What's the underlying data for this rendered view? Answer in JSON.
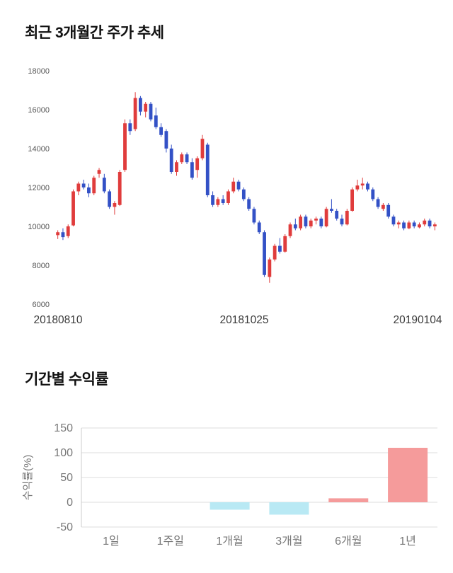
{
  "sections": {
    "price_trend": {
      "title": "최근 3개월간 주가 추세"
    },
    "returns": {
      "title": "기간별 수익률"
    }
  },
  "chart_data": [
    {
      "type": "candlestick",
      "title": "최근 3개월간 주가 추세",
      "ylim": [
        6000,
        18000
      ],
      "yticks": [
        18000,
        16000,
        14000,
        12000,
        10000,
        8000,
        6000
      ],
      "xtick_labels": [
        "20180810",
        "20181025",
        "20190104"
      ],
      "grid": false,
      "legend": "none",
      "colors": {
        "up": "#e03c3c",
        "down": "#3351c6"
      },
      "ohlc_format": [
        "open",
        "high",
        "low",
        "close"
      ],
      "ohlc": [
        [
          9550,
          9800,
          9350,
          9700
        ],
        [
          9700,
          9900,
          9300,
          9450
        ],
        [
          9500,
          10100,
          9400,
          10000
        ],
        [
          10050,
          11900,
          10000,
          11800
        ],
        [
          11800,
          12300,
          11600,
          12200
        ],
        [
          12200,
          12400,
          11900,
          12000
        ],
        [
          12000,
          12200,
          11500,
          11700
        ],
        [
          11700,
          12600,
          11600,
          12500
        ],
        [
          12700,
          13000,
          12500,
          12900
        ],
        [
          12500,
          12700,
          11700,
          11800
        ],
        [
          11800,
          11900,
          10900,
          11000
        ],
        [
          11000,
          11300,
          10600,
          11200
        ],
        [
          11100,
          12900,
          11050,
          12800
        ],
        [
          12900,
          15500,
          12800,
          15300
        ],
        [
          15300,
          15500,
          14700,
          14900
        ],
        [
          15000,
          16900,
          14900,
          16600
        ],
        [
          16600,
          16700,
          15700,
          15900
        ],
        [
          15900,
          16400,
          15600,
          16300
        ],
        [
          16300,
          16400,
          15400,
          15500
        ],
        [
          15700,
          16100,
          15000,
          15100
        ],
        [
          15100,
          15300,
          14600,
          14700
        ],
        [
          14900,
          15000,
          13800,
          14000
        ],
        [
          14000,
          14200,
          12700,
          12800
        ],
        [
          12800,
          13400,
          12600,
          13300
        ],
        [
          13300,
          13800,
          13200,
          13700
        ],
        [
          13700,
          13800,
          13200,
          13300
        ],
        [
          13300,
          13500,
          12400,
          12500
        ],
        [
          12900,
          13600,
          12500,
          13500
        ],
        [
          13500,
          14700,
          13400,
          14500
        ],
        [
          14200,
          14300,
          11500,
          11600
        ],
        [
          11600,
          11800,
          11000,
          11100
        ],
        [
          11100,
          11500,
          11000,
          11400
        ],
        [
          11400,
          11600,
          11100,
          11200
        ],
        [
          11200,
          11900,
          11100,
          11800
        ],
        [
          11800,
          12500,
          11700,
          12300
        ],
        [
          12300,
          12400,
          11800,
          11900
        ],
        [
          11900,
          12000,
          11300,
          11400
        ],
        [
          11400,
          11500,
          10800,
          10900
        ],
        [
          10900,
          11000,
          10100,
          10200
        ],
        [
          10200,
          10300,
          9600,
          9700
        ],
        [
          9700,
          9800,
          7400,
          7500
        ],
        [
          7400,
          8400,
          7100,
          8300
        ],
        [
          8300,
          9100,
          8200,
          9000
        ],
        [
          9000,
          9400,
          8600,
          8700
        ],
        [
          8700,
          9600,
          8650,
          9500
        ],
        [
          9500,
          10200,
          9400,
          10100
        ],
        [
          10100,
          10400,
          9800,
          9900
        ],
        [
          9900,
          10600,
          9800,
          10500
        ],
        [
          10500,
          10600,
          9900,
          10000
        ],
        [
          10000,
          10400,
          9900,
          10300
        ],
        [
          10300,
          10500,
          10100,
          10400
        ],
        [
          10400,
          10500,
          9900,
          10000
        ],
        [
          10000,
          11000,
          9950,
          10900
        ],
        [
          10900,
          11400,
          10700,
          10800
        ],
        [
          10800,
          10900,
          10300,
          10400
        ],
        [
          10400,
          10600,
          10000,
          10100
        ],
        [
          10100,
          10900,
          10050,
          10800
        ],
        [
          10800,
          12000,
          10750,
          11900
        ],
        [
          11900,
          12400,
          11800,
          12100
        ],
        [
          12100,
          12500,
          11900,
          12200
        ],
        [
          12200,
          12300,
          11800,
          11900
        ],
        [
          11900,
          12000,
          11300,
          11400
        ],
        [
          11400,
          11500,
          10900,
          11000
        ],
        [
          10900,
          11200,
          10800,
          11100
        ],
        [
          11100,
          11200,
          10400,
          10500
        ],
        [
          10500,
          10600,
          10000,
          10100
        ],
        [
          10100,
          10300,
          9900,
          10200
        ],
        [
          10200,
          10300,
          9800,
          9900
        ],
        [
          9900,
          10300,
          9850,
          10200
        ],
        [
          10200,
          10300,
          9900,
          10000
        ],
        [
          9950,
          10200,
          9900,
          10100
        ],
        [
          10100,
          10400,
          10000,
          10300
        ],
        [
          10300,
          10400,
          9900,
          10000
        ],
        [
          10000,
          10200,
          9800,
          10100
        ]
      ]
    },
    {
      "type": "bar",
      "title": "기간별 수익률",
      "ylabel": "수익률(%)",
      "categories": [
        "1일",
        "1주일",
        "1개월",
        "3개월",
        "6개월",
        "1년"
      ],
      "values": [
        0,
        0,
        -15,
        -25,
        8,
        110
      ],
      "ylim": [
        -50,
        150
      ],
      "yticks": [
        150,
        100,
        50,
        0,
        -50
      ],
      "grid": true,
      "legend": "none",
      "colors": {
        "positive": "#f59b9b",
        "negative": "#b9e9f4"
      }
    }
  ]
}
